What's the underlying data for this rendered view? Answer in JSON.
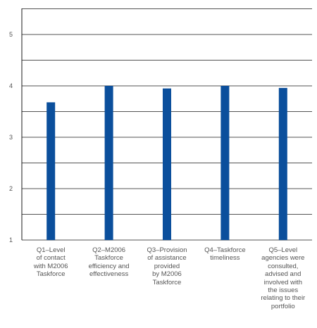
{
  "chart_data": {
    "type": "bar",
    "title": "",
    "xlabel": "",
    "ylabel": "",
    "ylim": [
      1,
      5.5
    ],
    "yticks": [
      "1",
      "2",
      "3",
      "4",
      "5"
    ],
    "categories": [
      [
        "Q1–Level",
        "of contact",
        "with M2006",
        "Taskforce"
      ],
      [
        "Q2–M2006",
        "Taskforce",
        "efficiency and",
        "effectiveness"
      ],
      [
        "Q3–Provision",
        "of assistance",
        "provided",
        "by M2006",
        "Taskforce"
      ],
      [
        "Q4–Taskforce",
        "timeliness"
      ],
      [
        "Q5–Level",
        "agencies were",
        "consulted,",
        "advised and",
        "involved with",
        "the issues",
        "relating to their",
        "portfolio"
      ]
    ],
    "values": [
      3.68,
      4.0,
      3.95,
      4.0,
      3.96
    ],
    "grid": true,
    "bar_color": "#0b4f9c",
    "grid_color": "#1a1a1a"
  }
}
